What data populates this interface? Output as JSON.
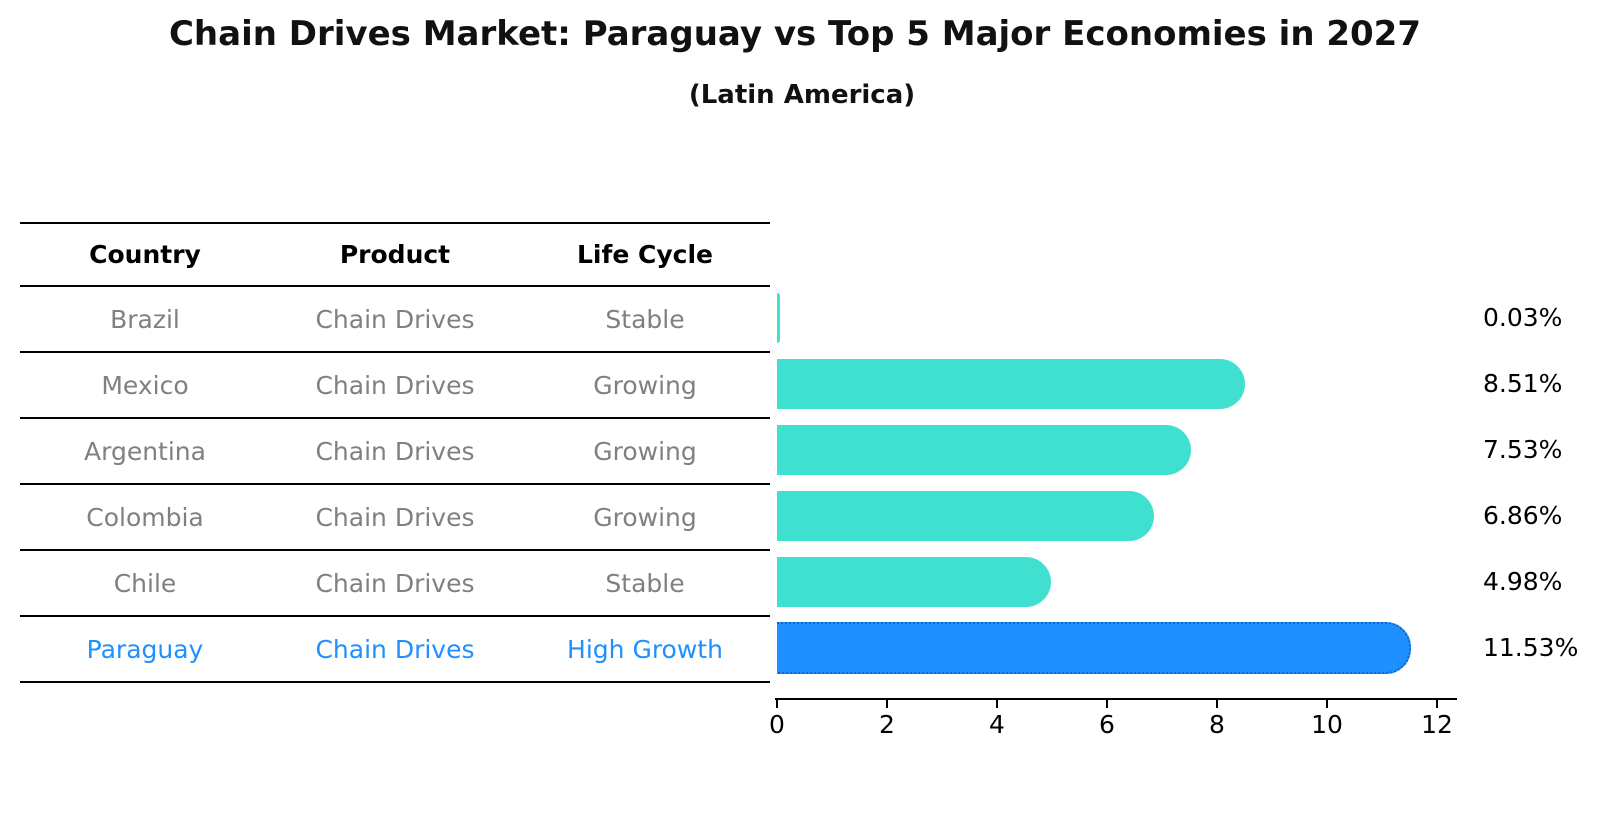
{
  "header": {
    "title": "Chain Drives Market: Paraguay vs Top 5 Major Economies in 2027",
    "subtitle": "(Latin America)"
  },
  "table": {
    "columns": [
      "Country",
      "Product",
      "Life Cycle"
    ],
    "rows": [
      {
        "country": "Brazil",
        "product": "Chain Drives",
        "life_cycle": "Stable",
        "highlight": false
      },
      {
        "country": "Mexico",
        "product": "Chain Drives",
        "life_cycle": "Growing",
        "highlight": false
      },
      {
        "country": "Argentina",
        "product": "Chain Drives",
        "life_cycle": "Growing",
        "highlight": false
      },
      {
        "country": "Colombia",
        "product": "Chain Drives",
        "life_cycle": "Growing",
        "highlight": false
      },
      {
        "country": "Chile",
        "product": "Chain Drives",
        "life_cycle": "Stable",
        "highlight": false
      },
      {
        "country": "Paraguay",
        "product": "Chain Drives",
        "life_cycle": "High Growth",
        "highlight": true
      }
    ]
  },
  "chart_data": {
    "type": "bar",
    "orientation": "horizontal",
    "title": "Chain Drives Market: Paraguay vs Top 5 Major Economies in 2027",
    "subtitle": "(Latin America)",
    "categories": [
      "Brazil",
      "Mexico",
      "Argentina",
      "Colombia",
      "Chile",
      "Paraguay"
    ],
    "values": [
      0.03,
      8.51,
      7.53,
      6.86,
      4.98,
      11.53
    ],
    "value_labels": [
      "0.03%",
      "8.51%",
      "7.53%",
      "6.86%",
      "4.98%",
      "11.53%"
    ],
    "x_ticks": [
      0,
      2,
      4,
      6,
      8,
      10,
      12
    ],
    "xlim": [
      0,
      12
    ],
    "grid": false,
    "legend": false,
    "bar_color": "#40E0D0",
    "highlight_color": "#1E90FF",
    "highlight_index": 5
  },
  "colors": {
    "row_text": "#808080",
    "highlight_text": "#1E90FF",
    "header_text": "#000000",
    "axis": "#000000"
  }
}
